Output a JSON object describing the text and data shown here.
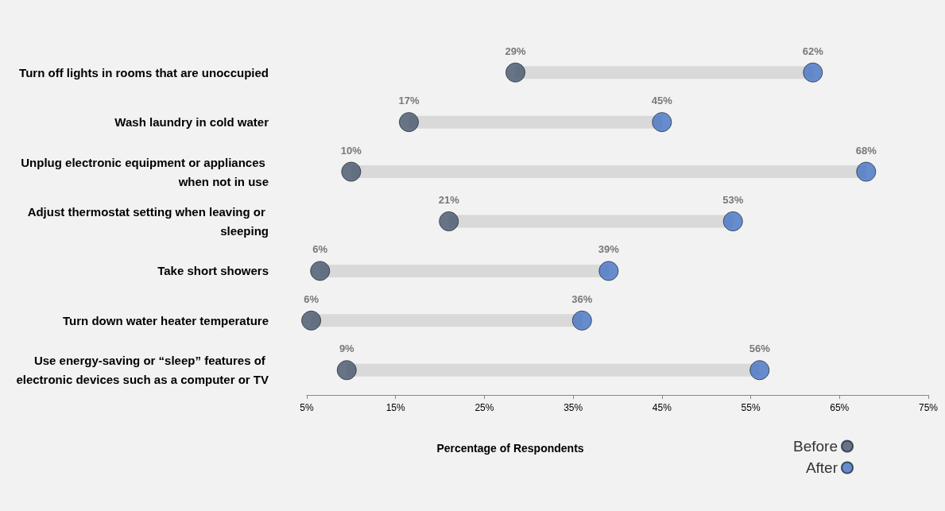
{
  "chart_data": {
    "type": "scatter",
    "orientation": "horizontal",
    "xlabel": "Percentage of Respondents",
    "categories": [
      "Turn off lights in rooms that are unoccupied",
      "Wash laundry in cold water",
      "Unplug electronic equipment or appliances when not in use",
      "Adjust thermostat setting when leaving or sleeping",
      "Take short showers",
      "Turn down water heater temperature",
      "Use energy-saving or “sleep” features of electronic devices such as a computer or TV"
    ],
    "series": [
      {
        "name": "Before",
        "color": "#44546a",
        "values": [
          28.5,
          16.5,
          10,
          21,
          6.5,
          5.5,
          9.5
        ],
        "value_labels": [
          "29%",
          "17%",
          "10%",
          "21%",
          "6%",
          "6%",
          "9%"
        ]
      },
      {
        "name": "After",
        "color": "#4472c4",
        "values": [
          62,
          45,
          68,
          53,
          39,
          36,
          56
        ],
        "value_labels": [
          "62%",
          "45%",
          "68%",
          "53%",
          "39%",
          "36%",
          "56%"
        ]
      }
    ],
    "xlim": [
      5,
      75
    ],
    "xticks": [
      {
        "value": 5,
        "label": "5%"
      },
      {
        "value": 15,
        "label": "15%"
      },
      {
        "value": 25,
        "label": "25%"
      },
      {
        "value": 35,
        "label": "35%"
      },
      {
        "value": 45,
        "label": "45%"
      },
      {
        "value": 55,
        "label": "55%"
      },
      {
        "value": 65,
        "label": "65%"
      },
      {
        "value": 75,
        "label": "75%"
      }
    ],
    "grid": false,
    "legend": "bottom right",
    "marker": "circle"
  }
}
